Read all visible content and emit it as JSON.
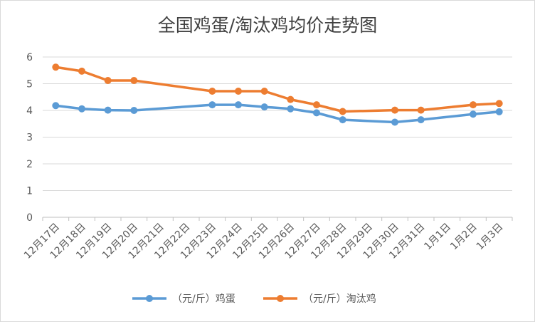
{
  "chart_data": {
    "type": "line",
    "title": "全国鸡蛋/淘汰鸡均价走势图",
    "xlabel": "",
    "ylabel": "",
    "ylim": [
      0,
      6
    ],
    "yticks": [
      0,
      1,
      2,
      3,
      4,
      5,
      6
    ],
    "grid": "horizontal",
    "legend": "bottom",
    "categories": [
      "12月17日",
      "12月18日",
      "12月19日",
      "12月20日",
      "12月21日",
      "12月22日",
      "12月23日",
      "12月24日",
      "12月25日",
      "12月26日",
      "12月27日",
      "12月28日",
      "12月29日",
      "12月30日",
      "12月31日",
      "1月1日",
      "1月2日",
      "1月3日"
    ],
    "series": [
      {
        "name": "（元/斤）鸡蛋",
        "color": "#5b9bd5",
        "values": [
          4.18,
          4.06,
          4.01,
          4.0,
          null,
          null,
          4.21,
          4.21,
          4.13,
          4.06,
          3.91,
          3.65,
          null,
          3.56,
          3.65,
          null,
          3.86,
          3.95
        ]
      },
      {
        "name": "（元/斤）淘汰鸡",
        "color": "#ed7d31",
        "values": [
          5.62,
          5.47,
          5.12,
          5.12,
          null,
          null,
          4.72,
          4.72,
          4.72,
          4.41,
          4.21,
          3.96,
          null,
          4.01,
          4.01,
          null,
          4.21,
          4.26
        ]
      }
    ]
  }
}
